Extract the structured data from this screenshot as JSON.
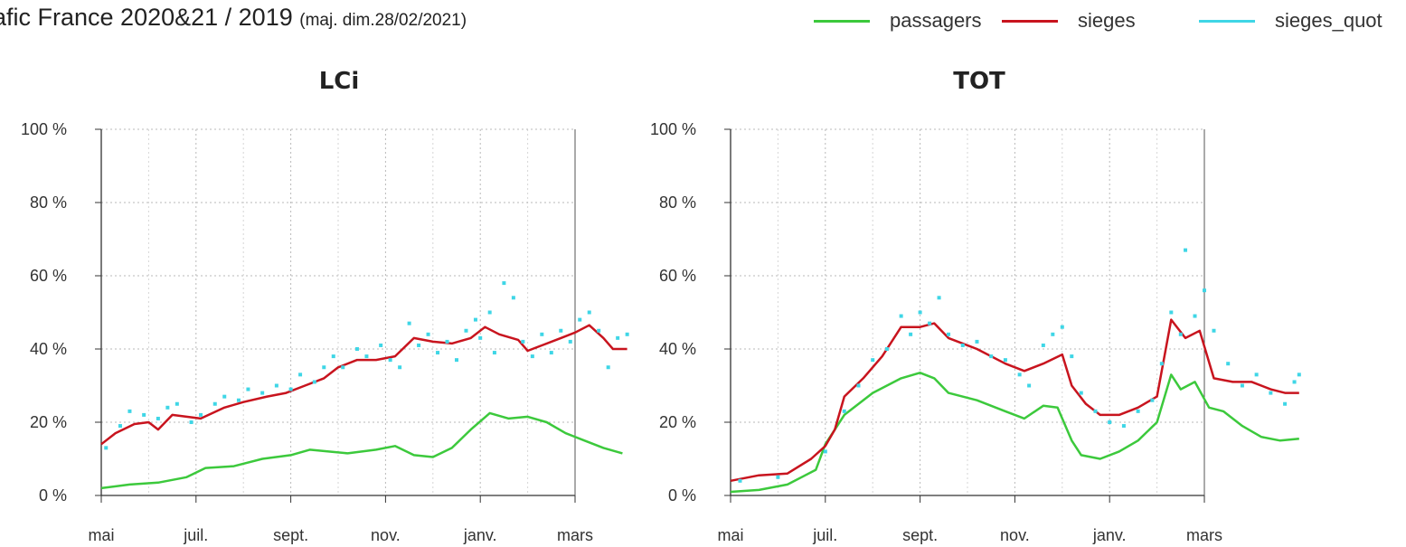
{
  "header": {
    "title": "afic France 2020&21 / 2019",
    "subtitle": "(maj. dim.28/02/2021)"
  },
  "legend": [
    {
      "name": "passagers",
      "color": "#3cc93c"
    },
    {
      "name": "sieges",
      "color": "#c8141e"
    },
    {
      "name": "sieges_quot",
      "color": "#3fd6e6"
    }
  ],
  "chart_data": [
    {
      "type": "line",
      "title": "LCi",
      "x_ticks": [
        "mai",
        "juil.",
        "sept.",
        "nov.",
        "janv.",
        "mars"
      ],
      "y_ticks": [
        "0 %",
        "20 %",
        "40 %",
        "60 %",
        "80 %",
        "100 %"
      ],
      "ylim": [
        0,
        100
      ],
      "grid": true,
      "series": [
        {
          "name": "passagers",
          "color": "#3cc93c",
          "values": [
            [
              0,
              2
            ],
            [
              0.3,
              3
            ],
            [
              0.6,
              3.5
            ],
            [
              0.9,
              5
            ],
            [
              1.1,
              7.5
            ],
            [
              1.4,
              8
            ],
            [
              1.7,
              10
            ],
            [
              2,
              11
            ],
            [
              2.2,
              12.5
            ],
            [
              2.4,
              12
            ],
            [
              2.6,
              11.5
            ],
            [
              2.9,
              12.5
            ],
            [
              3.1,
              13.5
            ],
            [
              3.3,
              11
            ],
            [
              3.5,
              10.5
            ],
            [
              3.7,
              13
            ],
            [
              3.9,
              18
            ],
            [
              4.1,
              22.5
            ],
            [
              4.3,
              21
            ],
            [
              4.5,
              21.5
            ],
            [
              4.7,
              20
            ],
            [
              4.9,
              17
            ],
            [
              5.1,
              15
            ],
            [
              5.3,
              13
            ],
            [
              5.5,
              11.5
            ]
          ]
        },
        {
          "name": "sieges",
          "color": "#c8141e",
          "values": [
            [
              0,
              14
            ],
            [
              0.15,
              17
            ],
            [
              0.35,
              19.5
            ],
            [
              0.5,
              20
            ],
            [
              0.6,
              18
            ],
            [
              0.75,
              22
            ],
            [
              0.9,
              21.5
            ],
            [
              1.05,
              21
            ],
            [
              1.3,
              24
            ],
            [
              1.5,
              25.5
            ],
            [
              1.75,
              27
            ],
            [
              1.95,
              28
            ],
            [
              2.15,
              30
            ],
            [
              2.35,
              32
            ],
            [
              2.5,
              35
            ],
            [
              2.7,
              37
            ],
            [
              2.9,
              37
            ],
            [
              3.1,
              38
            ],
            [
              3.3,
              43
            ],
            [
              3.5,
              42
            ],
            [
              3.7,
              41.5
            ],
            [
              3.9,
              43
            ],
            [
              4.05,
              46
            ],
            [
              4.2,
              44
            ],
            [
              4.4,
              42.5
            ],
            [
              4.5,
              39.5
            ],
            [
              4.65,
              41
            ],
            [
              4.85,
              43
            ],
            [
              5.0,
              44.5
            ],
            [
              5.15,
              46.5
            ],
            [
              5.3,
              43
            ],
            [
              5.4,
              40
            ],
            [
              5.55,
              40
            ]
          ]
        },
        {
          "name": "sieges_quot",
          "color": "#3fd6e6",
          "values": [
            [
              0.05,
              13
            ],
            [
              0.2,
              19
            ],
            [
              0.3,
              23
            ],
            [
              0.45,
              22
            ],
            [
              0.6,
              21
            ],
            [
              0.7,
              24
            ],
            [
              0.8,
              25
            ],
            [
              0.95,
              20
            ],
            [
              1.05,
              22
            ],
            [
              1.2,
              25
            ],
            [
              1.3,
              27
            ],
            [
              1.45,
              26
            ],
            [
              1.55,
              29
            ],
            [
              1.7,
              28
            ],
            [
              1.85,
              30
            ],
            [
              2.0,
              29
            ],
            [
              2.1,
              33
            ],
            [
              2.25,
              31
            ],
            [
              2.35,
              35
            ],
            [
              2.45,
              38
            ],
            [
              2.55,
              35
            ],
            [
              2.7,
              40
            ],
            [
              2.8,
              38
            ],
            [
              2.95,
              41
            ],
            [
              3.05,
              37
            ],
            [
              3.15,
              35
            ],
            [
              3.25,
              47
            ],
            [
              3.35,
              41
            ],
            [
              3.45,
              44
            ],
            [
              3.55,
              39
            ],
            [
              3.65,
              42
            ],
            [
              3.75,
              37
            ],
            [
              3.85,
              45
            ],
            [
              3.95,
              48
            ],
            [
              4.0,
              43
            ],
            [
              4.1,
              50
            ],
            [
              4.15,
              39
            ],
            [
              4.25,
              58
            ],
            [
              4.35,
              54
            ],
            [
              4.45,
              42
            ],
            [
              4.55,
              38
            ],
            [
              4.65,
              44
            ],
            [
              4.75,
              39
            ],
            [
              4.85,
              45
            ],
            [
              4.95,
              42
            ],
            [
              5.05,
              48
            ],
            [
              5.15,
              50
            ],
            [
              5.25,
              45
            ],
            [
              5.35,
              35
            ],
            [
              5.45,
              43
            ],
            [
              5.55,
              44
            ]
          ]
        }
      ]
    },
    {
      "type": "line",
      "title": "TOT",
      "x_ticks": [
        "mai",
        "juil.",
        "sept.",
        "nov.",
        "janv.",
        "mars"
      ],
      "y_ticks": [
        "0 %",
        "20 %",
        "40 %",
        "60 %",
        "80 %",
        "100 %"
      ],
      "ylim": [
        0,
        100
      ],
      "grid": true,
      "series": [
        {
          "name": "passagers",
          "color": "#3cc93c",
          "values": [
            [
              0,
              1
            ],
            [
              0.3,
              1.5
            ],
            [
              0.6,
              3
            ],
            [
              0.9,
              7
            ],
            [
              1.0,
              14
            ],
            [
              1.2,
              22
            ],
            [
              1.5,
              28
            ],
            [
              1.8,
              32
            ],
            [
              2.0,
              33.5
            ],
            [
              2.15,
              32
            ],
            [
              2.3,
              28
            ],
            [
              2.6,
              26
            ],
            [
              2.9,
              23
            ],
            [
              3.1,
              21
            ],
            [
              3.3,
              24.5
            ],
            [
              3.45,
              24
            ],
            [
              3.6,
              15
            ],
            [
              3.7,
              11
            ],
            [
              3.9,
              10
            ],
            [
              4.1,
              12
            ],
            [
              4.3,
              15
            ],
            [
              4.5,
              20
            ],
            [
              4.65,
              33
            ],
            [
              4.75,
              29
            ],
            [
              4.9,
              31
            ],
            [
              5.05,
              24
            ],
            [
              5.2,
              23
            ],
            [
              5.4,
              19
            ],
            [
              5.6,
              16
            ],
            [
              5.8,
              15
            ],
            [
              6.0,
              15.5
            ]
          ]
        },
        {
          "name": "sieges",
          "color": "#c8141e",
          "values": [
            [
              0,
              4
            ],
            [
              0.3,
              5.5
            ],
            [
              0.6,
              6
            ],
            [
              0.85,
              10
            ],
            [
              1.0,
              13.5
            ],
            [
              1.1,
              18
            ],
            [
              1.2,
              27
            ],
            [
              1.4,
              32
            ],
            [
              1.6,
              38
            ],
            [
              1.8,
              46
            ],
            [
              2.0,
              46
            ],
            [
              2.15,
              47
            ],
            [
              2.3,
              43
            ],
            [
              2.6,
              40
            ],
            [
              2.9,
              36
            ],
            [
              3.1,
              34
            ],
            [
              3.3,
              36
            ],
            [
              3.5,
              38.5
            ],
            [
              3.6,
              30
            ],
            [
              3.75,
              25
            ],
            [
              3.9,
              22
            ],
            [
              4.1,
              22
            ],
            [
              4.3,
              24
            ],
            [
              4.5,
              27
            ],
            [
              4.65,
              48
            ],
            [
              4.8,
              43
            ],
            [
              4.95,
              45
            ],
            [
              5.1,
              32
            ],
            [
              5.3,
              31
            ],
            [
              5.5,
              31
            ],
            [
              5.7,
              29
            ],
            [
              5.85,
              28
            ],
            [
              6.0,
              28
            ]
          ]
        },
        {
          "name": "sieges_quot",
          "color": "#3fd6e6",
          "values": [
            [
              0.1,
              4
            ],
            [
              0.5,
              5
            ],
            [
              1.0,
              12
            ],
            [
              1.2,
              23
            ],
            [
              1.35,
              30
            ],
            [
              1.5,
              37
            ],
            [
              1.65,
              40
            ],
            [
              1.8,
              49
            ],
            [
              1.9,
              44
            ],
            [
              2.0,
              50
            ],
            [
              2.1,
              47
            ],
            [
              2.2,
              54
            ],
            [
              2.3,
              44
            ],
            [
              2.45,
              41
            ],
            [
              2.6,
              42
            ],
            [
              2.75,
              38
            ],
            [
              2.9,
              37
            ],
            [
              3.05,
              33
            ],
            [
              3.15,
              30
            ],
            [
              3.3,
              41
            ],
            [
              3.4,
              44
            ],
            [
              3.5,
              46
            ],
            [
              3.6,
              38
            ],
            [
              3.7,
              28
            ],
            [
              3.85,
              23
            ],
            [
              4.0,
              20
            ],
            [
              4.15,
              19
            ],
            [
              4.3,
              23
            ],
            [
              4.45,
              26
            ],
            [
              4.55,
              36
            ],
            [
              4.65,
              50
            ],
            [
              4.75,
              44
            ],
            [
              4.8,
              67
            ],
            [
              4.9,
              49
            ],
            [
              5.0,
              56
            ],
            [
              5.1,
              45
            ],
            [
              5.25,
              36
            ],
            [
              5.4,
              30
            ],
            [
              5.55,
              33
            ],
            [
              5.7,
              28
            ],
            [
              5.85,
              25
            ],
            [
              5.95,
              31
            ],
            [
              6.0,
              33
            ]
          ]
        }
      ]
    }
  ]
}
